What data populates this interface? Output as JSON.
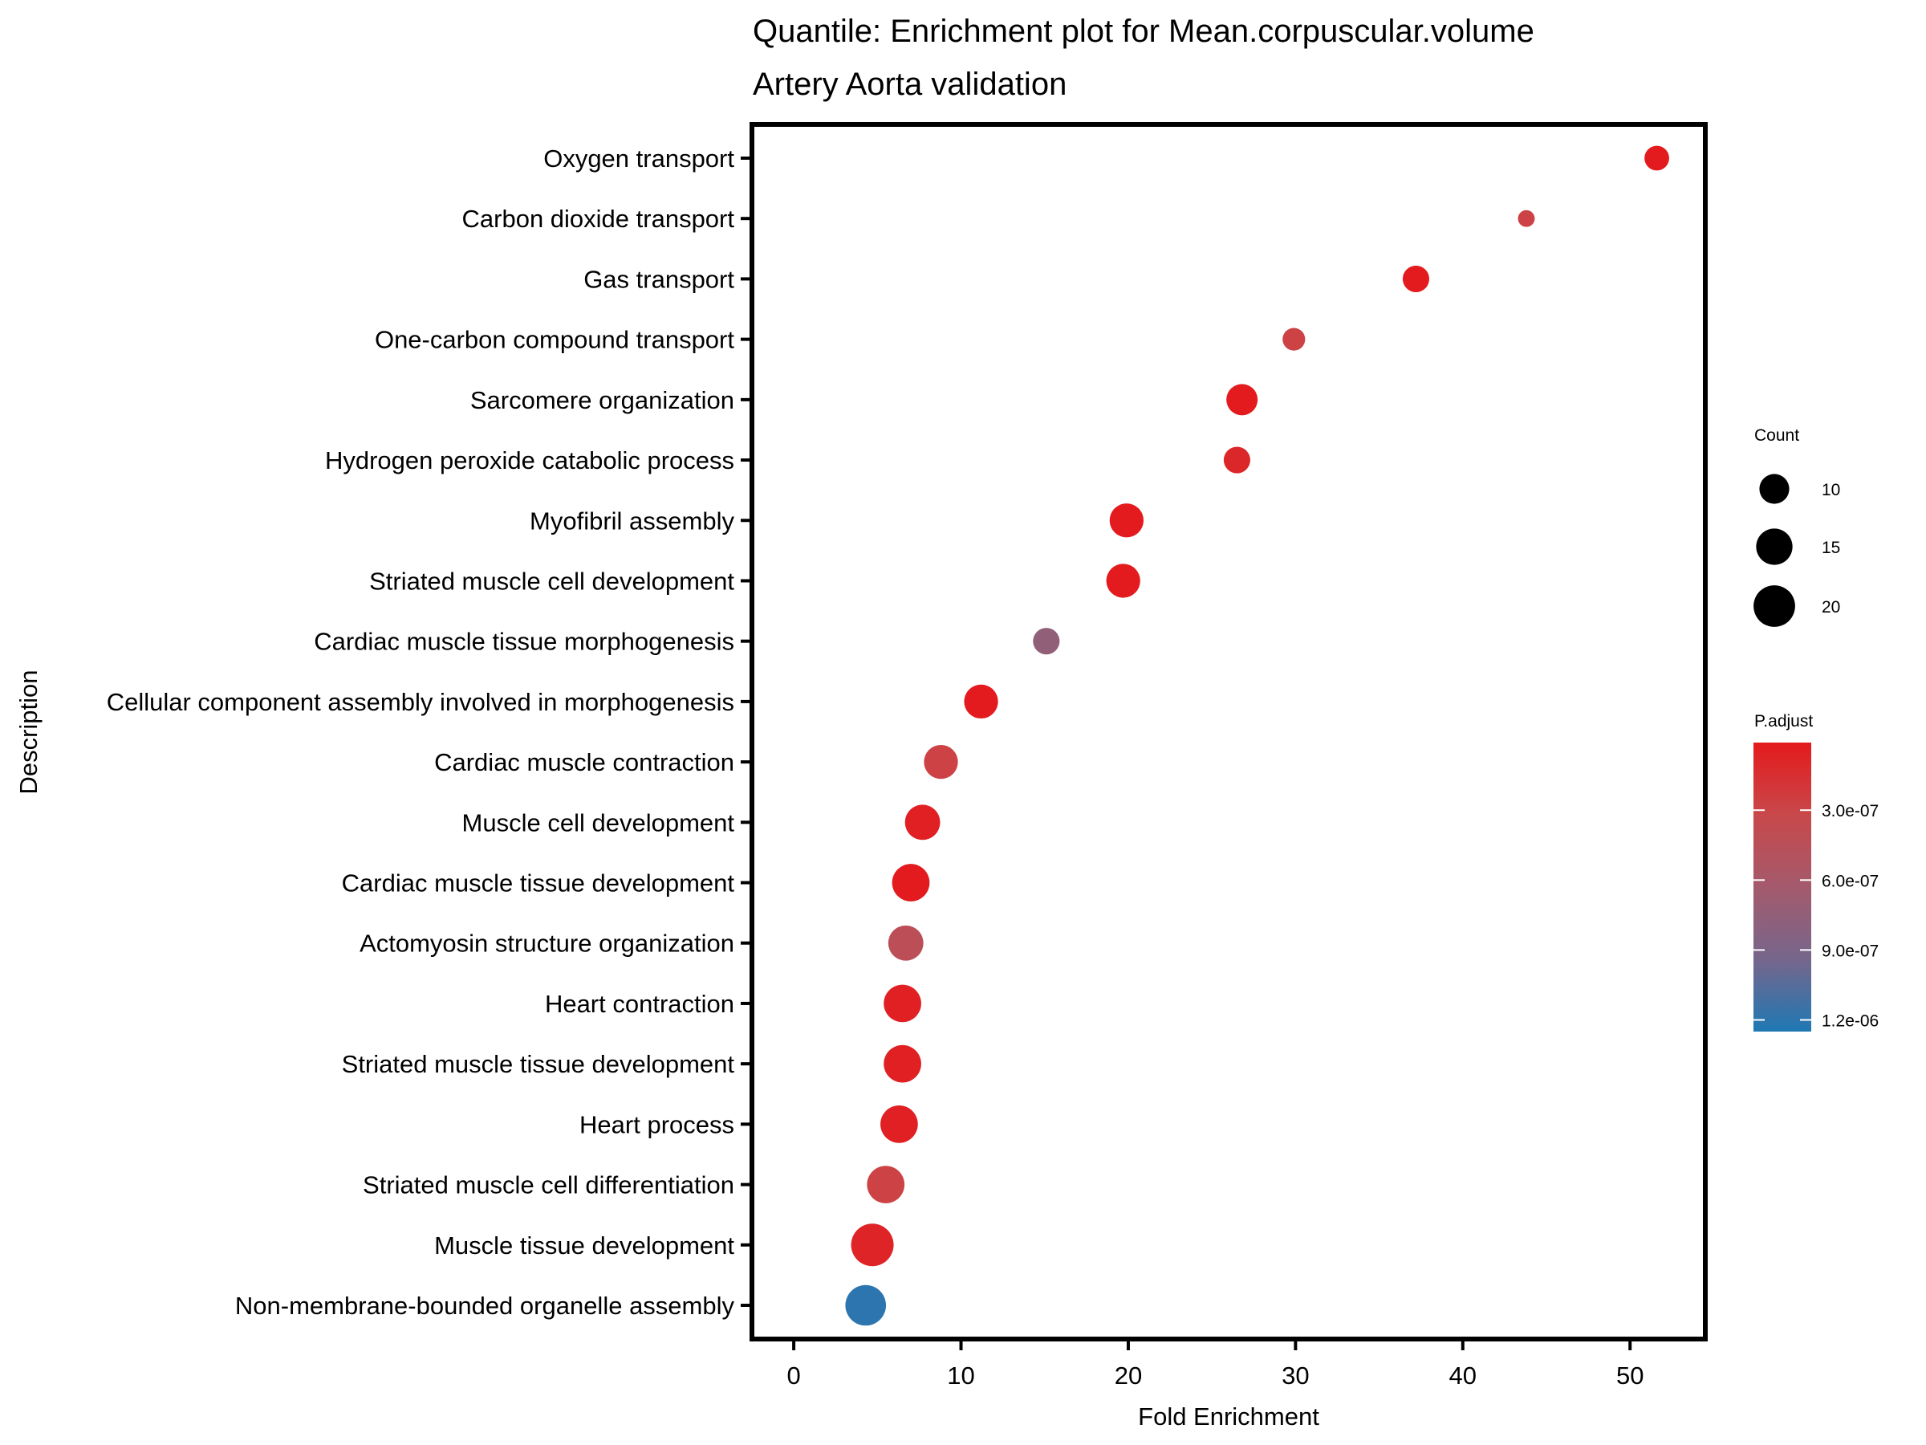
{
  "chart_data": {
    "type": "scatter",
    "subtype": "dot-plot",
    "title": "Quantile: Enrichment plot for Mean.corpuscular.volume",
    "subtitle": "Artery Aorta validation",
    "xlabel": "Fold Enrichment",
    "ylabel": "Description",
    "xlim": [
      -2.5,
      54.5
    ],
    "xticks": [
      0,
      10,
      20,
      30,
      40,
      50
    ],
    "grid": false,
    "categories": [
      "Oxygen transport",
      "Carbon dioxide transport",
      "Gas transport",
      "One-carbon compound transport",
      "Sarcomere organization",
      "Hydrogen peroxide catabolic process",
      "Myofibril assembly",
      "Striated muscle cell development",
      "Cardiac muscle tissue morphogenesis",
      "Cellular component assembly involved in morphogenesis",
      "Cardiac muscle contraction",
      "Muscle cell development",
      "Cardiac muscle tissue development",
      "Actomyosin structure organization",
      "Heart contraction",
      "Striated muscle tissue development",
      "Heart process",
      "Striated muscle cell differentiation",
      "Muscle tissue development",
      "Non-membrane-bounded organelle assembly"
    ],
    "points": [
      {
        "label": "Oxygen transport",
        "fold_enrichment": 51.6,
        "count": 7,
        "p_adjust": 2e-08
      },
      {
        "label": "Carbon dioxide transport",
        "fold_enrichment": 43.8,
        "count": 4,
        "p_adjust": 2.8e-07
      },
      {
        "label": "Gas transport",
        "fold_enrichment": 37.2,
        "count": 8,
        "p_adjust": 2e-08
      },
      {
        "label": "One-carbon compound transport",
        "fold_enrichment": 29.9,
        "count": 6,
        "p_adjust": 2.8e-07
      },
      {
        "label": "Sarcomere organization",
        "fold_enrichment": 26.8,
        "count": 11,
        "p_adjust": 2e-08
      },
      {
        "label": "Hydrogen peroxide catabolic process",
        "fold_enrichment": 26.5,
        "count": 8,
        "p_adjust": 1e-07
      },
      {
        "label": "Myofibril assembly",
        "fold_enrichment": 19.9,
        "count": 13,
        "p_adjust": 2e-08
      },
      {
        "label": "Striated muscle cell development",
        "fold_enrichment": 19.7,
        "count": 13,
        "p_adjust": 2e-08
      },
      {
        "label": "Cardiac muscle tissue morphogenesis",
        "fold_enrichment": 15.1,
        "count": 8,
        "p_adjust": 7.5e-07
      },
      {
        "label": "Cellular component assembly involved in morphogenesis",
        "fold_enrichment": 11.2,
        "count": 13,
        "p_adjust": 2e-08
      },
      {
        "label": "Cardiac muscle contraction",
        "fold_enrichment": 8.8,
        "count": 13,
        "p_adjust": 2.8e-07
      },
      {
        "label": "Muscle cell development",
        "fold_enrichment": 7.7,
        "count": 14,
        "p_adjust": 5e-08
      },
      {
        "label": "Cardiac muscle tissue development",
        "fold_enrichment": 7.0,
        "count": 16,
        "p_adjust": 2e-08
      },
      {
        "label": "Actomyosin structure organization",
        "fold_enrichment": 6.7,
        "count": 14,
        "p_adjust": 4.3e-07
      },
      {
        "label": "Heart contraction",
        "fold_enrichment": 6.5,
        "count": 16,
        "p_adjust": 5e-08
      },
      {
        "label": "Striated muscle tissue development",
        "fold_enrichment": 6.5,
        "count": 16,
        "p_adjust": 5e-08
      },
      {
        "label": "Heart process",
        "fold_enrichment": 6.3,
        "count": 16,
        "p_adjust": 5e-08
      },
      {
        "label": "Striated muscle cell differentiation",
        "fold_enrichment": 5.5,
        "count": 16,
        "p_adjust": 2.8e-07
      },
      {
        "label": "Muscle tissue development",
        "fold_enrichment": 4.7,
        "count": 21,
        "p_adjust": 8e-08
      },
      {
        "label": "Non-membrane-bounded organelle assembly",
        "fold_enrichment": 4.3,
        "count": 19,
        "p_adjust": 1.2e-06
      }
    ],
    "size_legend": {
      "title": "Count",
      "entries": [
        {
          "value": 10,
          "label": "10"
        },
        {
          "value": 15,
          "label": "15"
        },
        {
          "value": 20,
          "label": "20"
        }
      ]
    },
    "color_legend": {
      "title": "P.adjust",
      "range": [
        1e-08,
        1.25e-06
      ],
      "low_color": "#e41a1c",
      "high_color": "#1f78b4",
      "ticks": [
        {
          "value": 3e-07,
          "label": "3.0e-07"
        },
        {
          "value": 6e-07,
          "label": "6.0e-07"
        },
        {
          "value": 9e-07,
          "label": "9.0e-07"
        },
        {
          "value": 1.2e-06,
          "label": "1.2e-06"
        }
      ]
    }
  }
}
